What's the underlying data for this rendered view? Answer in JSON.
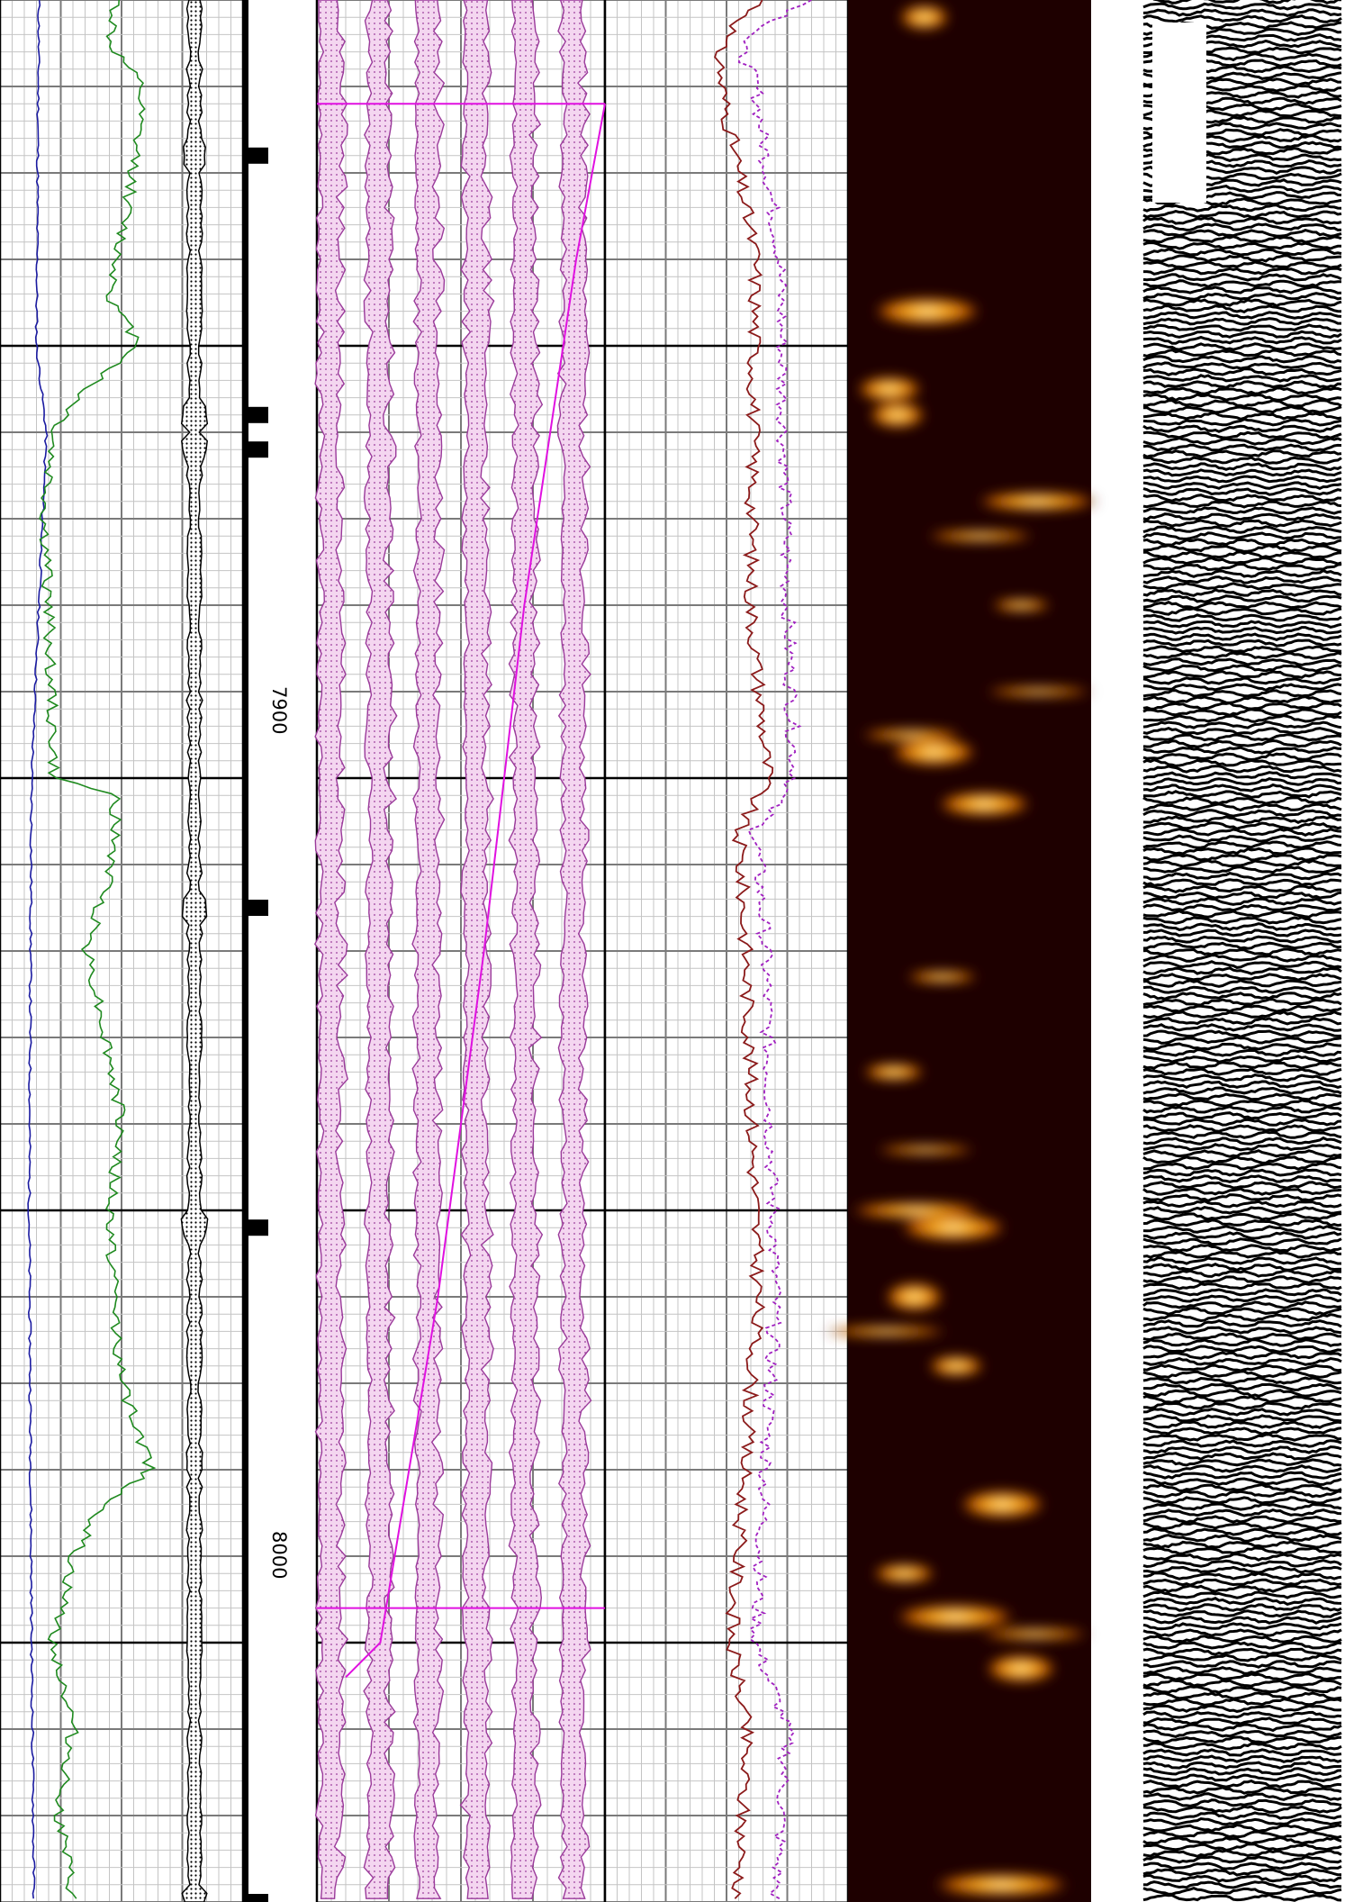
{
  "chart_data": {
    "type": "line",
    "title": "",
    "depth_axis": {
      "range": [
        7810,
        8030
      ],
      "major_tick_interval": 50,
      "labels": [
        "7900",
        "8000"
      ],
      "label_orientation": "rotated"
    },
    "tracks": [
      {
        "id": "track1",
        "grid": "fine",
        "series": [
          {
            "color": "#1a1aa0",
            "style": "solid",
            "points": [
              [
                7810,
                0.16
              ],
              [
                7850,
                0.15
              ],
              [
                7860,
                0.19
              ],
              [
                7900,
                0.13
              ],
              [
                7950,
                0.12
              ],
              [
                8000,
                0.13
              ],
              [
                8030,
                0.14
              ]
            ]
          },
          {
            "color": "#1f8a1f",
            "style": "solid",
            "points": [
              [
                7810,
                0.48
              ],
              [
                7815,
                0.45
              ],
              [
                7820,
                0.58
              ],
              [
                7830,
                0.55
              ],
              [
                7840,
                0.48
              ],
              [
                7845,
                0.46
              ],
              [
                7850,
                0.58
              ],
              [
                7855,
                0.35
              ],
              [
                7860,
                0.22
              ],
              [
                7870,
                0.18
              ],
              [
                7880,
                0.2
              ],
              [
                7900,
                0.22
              ],
              [
                7902,
                0.48
              ],
              [
                7910,
                0.46
              ],
              [
                7920,
                0.36
              ],
              [
                7925,
                0.4
              ],
              [
                7940,
                0.5
              ],
              [
                7950,
                0.45
              ],
              [
                7960,
                0.47
              ],
              [
                7970,
                0.5
              ],
              [
                7980,
                0.62
              ],
              [
                7985,
                0.4
              ],
              [
                7990,
                0.3
              ],
              [
                8000,
                0.22
              ],
              [
                8010,
                0.3
              ],
              [
                8020,
                0.24
              ],
              [
                8030,
                0.3
              ]
            ]
          }
        ]
      },
      {
        "id": "depth_track",
        "markers": [
          7828,
          7858,
          7862,
          7915,
          7952,
          8030
        ],
        "crossplot_curve": {
          "style": "dotted-thick",
          "position": 0.8
        }
      },
      {
        "id": "track2",
        "grid": "fine",
        "array_curves": 6,
        "trend_line": {
          "color": "#e010e0",
          "points": [
            [
              7822,
              1.0
            ],
            [
              7840,
              0.9
            ],
            [
              7880,
              0.72
            ],
            [
              7920,
              0.58
            ],
            [
              7960,
              0.42
            ],
            [
              8000,
              0.22
            ],
            [
              8004,
              0.1
            ]
          ]
        },
        "zone_boundaries": [
          7822,
          7996
        ]
      },
      {
        "id": "track3",
        "grid": "fine",
        "series": [
          {
            "color": "#8b1a1a",
            "style": "solid",
            "points": [
              [
                7810,
                0.65
              ],
              [
                7815,
                0.47
              ],
              [
                7820,
                0.48
              ],
              [
                7840,
                0.62
              ],
              [
                7880,
                0.6
              ],
              [
                7900,
                0.67
              ],
              [
                7906,
                0.55
              ],
              [
                7920,
                0.58
              ],
              [
                7960,
                0.63
              ],
              [
                8000,
                0.52
              ],
              [
                8010,
                0.58
              ],
              [
                8030,
                0.55
              ]
            ]
          },
          {
            "color": "#a020c0",
            "style": "dashed",
            "points": [
              [
                7810,
                0.85
              ],
              [
                7815,
                0.55
              ],
              [
                7820,
                0.62
              ],
              [
                7840,
                0.72
              ],
              [
                7880,
                0.75
              ],
              [
                7900,
                0.78
              ],
              [
                7906,
                0.62
              ],
              [
                7920,
                0.66
              ],
              [
                7960,
                0.7
              ],
              [
                8000,
                0.62
              ],
              [
                8010,
                0.75
              ],
              [
                8030,
                0.7
              ]
            ]
          }
        ]
      },
      {
        "id": "image_track",
        "background": "#1e0000",
        "highlight_color": "#ffb020",
        "bright_spots_depth": [
          7812,
          7846,
          7855,
          7858,
          7868,
          7872,
          7880,
          7890,
          7895,
          7897,
          7903,
          7923,
          7934,
          7943,
          7950,
          7952,
          7960,
          7964,
          7968,
          7984,
          7992,
          7997,
          7999,
          8003,
          8028
        ]
      },
      {
        "id": "waveform_track",
        "background": "#ffffff",
        "trace_color": "#000000"
      }
    ]
  }
}
